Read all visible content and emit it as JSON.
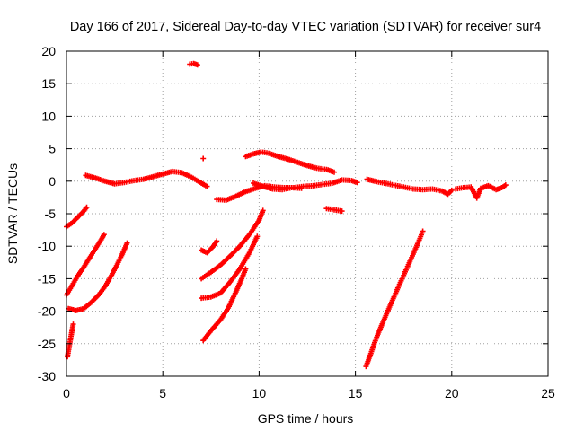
{
  "chart_data": {
    "type": "scatter",
    "title": "Day 166 of 2017, Sidereal Day-to-day VTEC variation (SDTVAR) for receiver sur4",
    "xlabel": "GPS time / hours",
    "ylabel": "SDTVAR / TECUs",
    "xlim": [
      0,
      25
    ],
    "ylim": [
      -30,
      20
    ],
    "xticks": [
      "0",
      "5",
      "10",
      "15",
      "20",
      "25"
    ],
    "yticks": [
      "20",
      "15",
      "10",
      "5",
      "0",
      "-5",
      "-10",
      "-15",
      "-20",
      "-25",
      "-30"
    ],
    "grid": true,
    "marker": "plus",
    "color": "#ff0000",
    "segments": [
      {
        "points": [
          [
            1.0,
            0.9
          ],
          [
            1.5,
            0.5
          ],
          [
            2.0,
            0.0
          ],
          [
            2.5,
            -0.4
          ],
          [
            3.0,
            -0.2
          ],
          [
            3.5,
            0.1
          ],
          [
            4.0,
            0.3
          ],
          [
            4.5,
            0.7
          ],
          [
            5.0,
            1.1
          ],
          [
            5.5,
            1.5
          ],
          [
            6.0,
            1.3
          ],
          [
            6.5,
            0.6
          ],
          [
            7.0,
            -0.3
          ],
          [
            7.3,
            -0.8
          ]
        ]
      },
      {
        "points": [
          [
            6.4,
            18.0
          ],
          [
            6.6,
            18.1
          ],
          [
            6.8,
            17.9
          ]
        ]
      },
      {
        "points": [
          [
            7.1,
            3.5
          ]
        ]
      },
      {
        "points": [
          [
            7.8,
            -2.8
          ],
          [
            8.3,
            -2.9
          ],
          [
            8.8,
            -2.3
          ],
          [
            9.3,
            -1.6
          ],
          [
            9.8,
            -1.1
          ],
          [
            10.3,
            -0.7
          ],
          [
            10.8,
            -0.9
          ],
          [
            11.3,
            -1.0
          ],
          [
            11.8,
            -1.0
          ],
          [
            12.3,
            -0.8
          ],
          [
            12.8,
            -0.7
          ],
          [
            13.3,
            -0.5
          ],
          [
            13.8,
            -0.3
          ],
          [
            14.3,
            0.2
          ],
          [
            14.8,
            0.1
          ],
          [
            15.1,
            -0.2
          ]
        ]
      },
      {
        "points": [
          [
            9.3,
            3.8
          ],
          [
            9.7,
            4.2
          ],
          [
            10.1,
            4.5
          ],
          [
            10.5,
            4.3
          ],
          [
            11.0,
            3.8
          ],
          [
            11.5,
            3.4
          ],
          [
            12.0,
            2.9
          ],
          [
            12.5,
            2.4
          ],
          [
            13.0,
            2.0
          ],
          [
            13.5,
            1.8
          ],
          [
            13.9,
            1.4
          ]
        ]
      },
      {
        "points": [
          [
            9.7,
            -0.3
          ],
          [
            10.2,
            -0.8
          ],
          [
            10.7,
            -1.2
          ],
          [
            11.2,
            -1.3
          ],
          [
            11.7,
            -1.0
          ],
          [
            12.2,
            -1.1
          ]
        ]
      },
      {
        "points": [
          [
            13.5,
            -4.2
          ],
          [
            13.9,
            -4.4
          ],
          [
            14.3,
            -4.6
          ]
        ]
      },
      {
        "points": [
          [
            15.6,
            0.3
          ],
          [
            16.0,
            0.0
          ],
          [
            16.5,
            -0.3
          ],
          [
            17.0,
            -0.6
          ],
          [
            17.5,
            -0.9
          ],
          [
            18.0,
            -1.2
          ],
          [
            18.5,
            -1.3
          ],
          [
            19.0,
            -1.2
          ],
          [
            19.5,
            -1.5
          ],
          [
            19.8,
            -2.0
          ],
          [
            20.0,
            -1.4
          ]
        ]
      },
      {
        "points": [
          [
            20.2,
            -1.2
          ],
          [
            20.6,
            -1.0
          ],
          [
            21.0,
            -0.9
          ],
          [
            21.3,
            -2.6
          ],
          [
            21.5,
            -1.1
          ],
          [
            21.9,
            -0.7
          ],
          [
            22.3,
            -1.3
          ],
          [
            22.6,
            -1.0
          ],
          [
            22.8,
            -0.6
          ]
        ]
      },
      {
        "points": [
          [
            0.0,
            -7.0
          ],
          [
            0.3,
            -6.4
          ],
          [
            0.6,
            -5.5
          ],
          [
            0.9,
            -4.6
          ],
          [
            1.05,
            -4.0
          ]
        ]
      },
      {
        "points": [
          [
            0.0,
            -17.5
          ],
          [
            0.3,
            -16.0
          ],
          [
            0.6,
            -14.5
          ],
          [
            0.9,
            -13.2
          ],
          [
            1.2,
            -11.8
          ],
          [
            1.5,
            -10.4
          ],
          [
            1.8,
            -9.0
          ],
          [
            1.95,
            -8.2
          ]
        ]
      },
      {
        "points": [
          [
            0.1,
            -19.6
          ],
          [
            0.5,
            -19.9
          ],
          [
            0.9,
            -19.6
          ],
          [
            1.3,
            -18.6
          ],
          [
            1.7,
            -17.4
          ],
          [
            2.0,
            -16.2
          ],
          [
            2.3,
            -14.7
          ],
          [
            2.6,
            -13.0
          ],
          [
            2.9,
            -11.2
          ],
          [
            3.15,
            -9.5
          ]
        ]
      },
      {
        "points": [
          [
            0.05,
            -27.0
          ],
          [
            0.15,
            -25.3
          ],
          [
            0.25,
            -23.6
          ],
          [
            0.35,
            -22.0
          ]
        ]
      },
      {
        "points": [
          [
            7.0,
            -10.6
          ],
          [
            7.3,
            -11.0
          ],
          [
            7.6,
            -10.1
          ],
          [
            7.8,
            -9.2
          ]
        ]
      },
      {
        "points": [
          [
            7.0,
            -15.0
          ],
          [
            7.5,
            -14.0
          ],
          [
            8.0,
            -12.9
          ],
          [
            8.5,
            -11.5
          ],
          [
            9.0,
            -10.0
          ],
          [
            9.5,
            -8.2
          ],
          [
            10.0,
            -6.0
          ],
          [
            10.2,
            -4.5
          ]
        ]
      },
      {
        "points": [
          [
            7.0,
            -18.0
          ],
          [
            7.5,
            -17.8
          ],
          [
            8.0,
            -17.2
          ],
          [
            8.5,
            -15.5
          ],
          [
            9.0,
            -13.5
          ],
          [
            9.5,
            -11.0
          ],
          [
            9.9,
            -8.5
          ]
        ]
      },
      {
        "points": [
          [
            7.1,
            -24.5
          ],
          [
            7.5,
            -23.0
          ],
          [
            8.0,
            -21.3
          ],
          [
            8.4,
            -19.5
          ],
          [
            8.8,
            -17.0
          ],
          [
            9.1,
            -15.0
          ],
          [
            9.3,
            -13.5
          ]
        ]
      },
      {
        "points": [
          [
            15.55,
            -28.5
          ],
          [
            15.8,
            -26.5
          ],
          [
            16.1,
            -24.0
          ],
          [
            16.5,
            -21.2
          ],
          [
            17.0,
            -17.8
          ],
          [
            17.5,
            -14.5
          ],
          [
            18.0,
            -11.2
          ],
          [
            18.35,
            -8.8
          ],
          [
            18.5,
            -7.7
          ]
        ]
      }
    ]
  }
}
